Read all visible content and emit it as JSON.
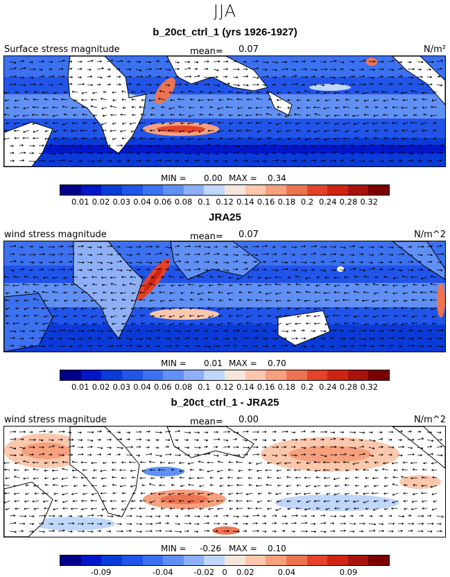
{
  "season": "JJA",
  "colors": [
    "#00008b",
    "#0016c8",
    "#0a3ad8",
    "#2154e8",
    "#3c71f0",
    "#6190f4",
    "#8fb0f7",
    "#c0d6fb",
    "#f5e6dc",
    "#fbc7ad",
    "#f6a07e",
    "#ed7452",
    "#e4432a",
    "#cf2412",
    "#a8140b",
    "#7a0000"
  ],
  "colorbar_ticks_abs": [
    "0.01",
    "0.02",
    "0.03",
    "0.04",
    "0.06",
    "0.08",
    "0.1",
    "0.12",
    "0.14",
    "0.16",
    "0.18",
    "0.2",
    "0.24",
    "0.28",
    "0.32"
  ],
  "colorbar_ticks_diff": [
    "-0.09",
    "-0.04",
    "-0.02",
    "0",
    "0.02",
    "0.04",
    "0.09"
  ],
  "panels": [
    {
      "title": "b_20ct_ctrl_1 (yrs 1926-1927)",
      "field_label": "Surface stress magnitude",
      "mean_label": "mean=",
      "mean_value": "0.07",
      "units": "N/m²",
      "min_label": "MIN =",
      "min_value": "0.00",
      "max_label": "MAX =",
      "max_value": "0.34"
    },
    {
      "title": "JRA25",
      "field_label": "wind stress magnitude",
      "mean_label": "mean=",
      "mean_value": "0.07",
      "units": "N/m^2",
      "min_label": "MIN =",
      "min_value": "0.01",
      "max_label": "MAX =",
      "max_value": "0.70"
    },
    {
      "title": "b_20ct_ctrl_1 - JRA25",
      "field_label": "wind stress magnitude",
      "mean_label": "mean=",
      "mean_value": "0.00",
      "units": "N/m^2",
      "min_label": "MIN =",
      "min_value": "-0.26",
      "max_label": "MAX =",
      "max_value": "0.10"
    }
  ]
}
